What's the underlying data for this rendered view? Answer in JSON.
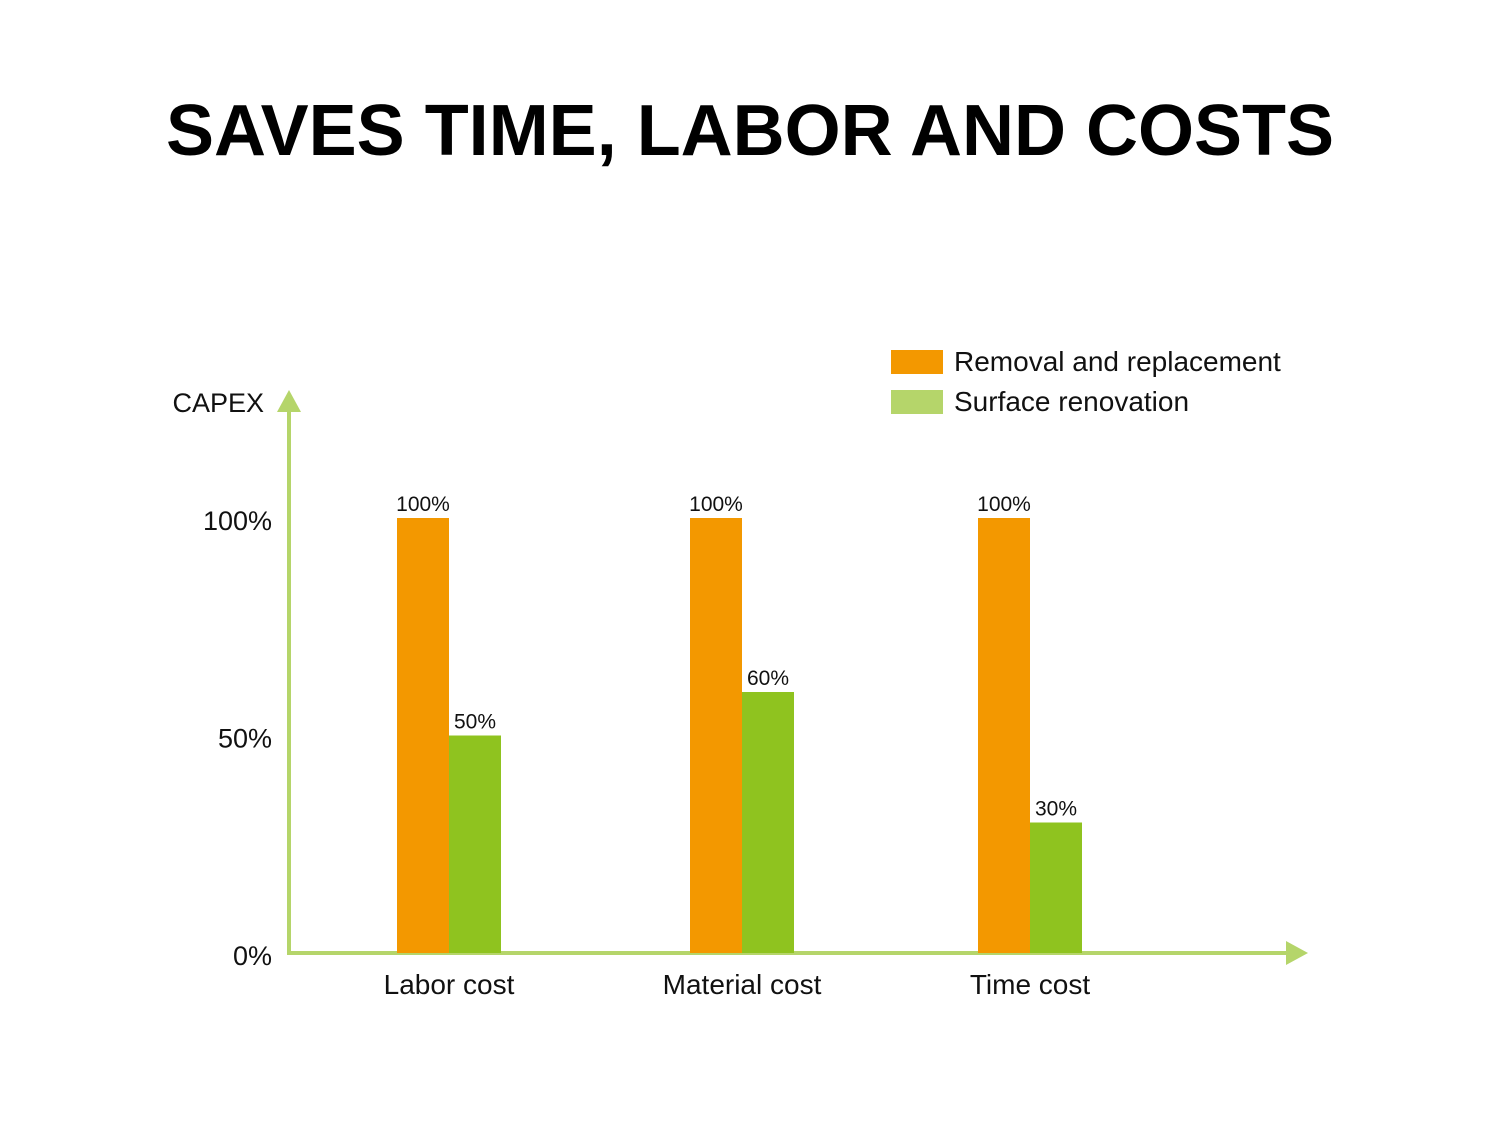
{
  "chart_data": {
    "type": "bar",
    "title": "SAVES TIME, LABOR AND COSTS",
    "ylabel": "CAPEX",
    "xlabel": "",
    "categories": [
      "Labor cost",
      "Material cost",
      "Time cost"
    ],
    "series": [
      {
        "name": "Removal and replacement",
        "values": [
          100,
          100,
          100
        ],
        "labels": [
          "100%",
          "100%",
          "100%"
        ],
        "color": "#F39800"
      },
      {
        "name": "Surface renovation",
        "values": [
          50,
          60,
          30
        ],
        "labels": [
          "50%",
          "60%",
          "30%"
        ],
        "color": "#8FC31F"
      }
    ],
    "yticks": [
      {
        "value": 0,
        "label": "0%"
      },
      {
        "value": 50,
        "label": "50%"
      },
      {
        "value": 100,
        "label": "100%"
      }
    ],
    "ylim": [
      0,
      100
    ],
    "legend_swatch_colors": [
      "#F39800",
      "#B5D56A"
    ],
    "axis_color": "#B5D56A",
    "legend_position": "top-right",
    "grid": false
  }
}
